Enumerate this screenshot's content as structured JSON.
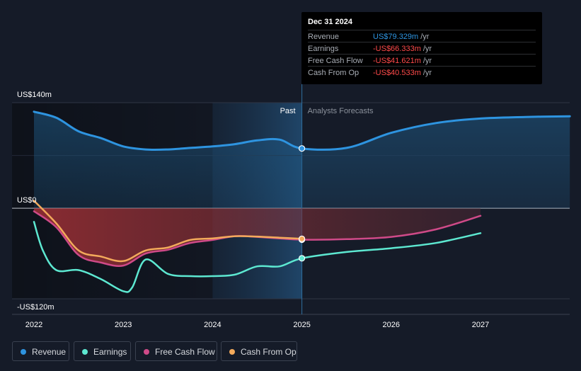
{
  "chart_data": {
    "type": "area",
    "y_axis": {
      "ylim": [
        -120,
        140
      ],
      "tick_labels": [
        {
          "value": 140,
          "label": "US$140m"
        },
        {
          "value": 0,
          "label": "US$0"
        },
        {
          "value": -120,
          "label": "-US$120m"
        }
      ]
    },
    "x_axis": {
      "xlim": [
        2022,
        2028
      ],
      "ticks": [
        2022,
        2023,
        2024,
        2025,
        2026,
        2027
      ],
      "tick_labels": [
        "2022",
        "2023",
        "2024",
        "2025",
        "2026",
        "2027"
      ]
    },
    "past_boundary": 2025,
    "highlight_start": 2024,
    "past_label": "Past",
    "forecast_label": "Analysts Forecasts",
    "series": [
      {
        "name": "Revenue",
        "color": "#2e94e0",
        "values": [
          [
            2022,
            128
          ],
          [
            2022.25,
            120
          ],
          [
            2022.5,
            102
          ],
          [
            2022.75,
            93
          ],
          [
            2023,
            82
          ],
          [
            2023.25,
            78
          ],
          [
            2023.5,
            78
          ],
          [
            2023.75,
            80
          ],
          [
            2024,
            82
          ],
          [
            2024.25,
            85
          ],
          [
            2024.5,
            90
          ],
          [
            2024.75,
            91
          ],
          [
            2025,
            79.3
          ],
          [
            2025.5,
            80
          ],
          [
            2026,
            100
          ],
          [
            2026.5,
            113
          ],
          [
            2027,
            119
          ],
          [
            2027.5,
            121
          ],
          [
            2028,
            122
          ]
        ]
      },
      {
        "name": "Earnings",
        "color": "#5de8d1",
        "values": [
          [
            2022,
            -18
          ],
          [
            2022.1,
            -56
          ],
          [
            2022.25,
            -82
          ],
          [
            2022.5,
            -82
          ],
          [
            2022.75,
            -94
          ],
          [
            2023,
            -110
          ],
          [
            2023.1,
            -105
          ],
          [
            2023.25,
            -68
          ],
          [
            2023.5,
            -87
          ],
          [
            2023.75,
            -90
          ],
          [
            2024,
            -90
          ],
          [
            2024.25,
            -88
          ],
          [
            2024.5,
            -77
          ],
          [
            2024.75,
            -77
          ],
          [
            2025,
            -66.3
          ],
          [
            2025.5,
            -58
          ],
          [
            2026,
            -53
          ],
          [
            2026.5,
            -46
          ],
          [
            2027,
            -33
          ]
        ]
      },
      {
        "name": "Free Cash Flow",
        "color": "#cf4a88",
        "values": [
          [
            2022,
            -4
          ],
          [
            2022.25,
            -25
          ],
          [
            2022.5,
            -62
          ],
          [
            2022.75,
            -72
          ],
          [
            2023,
            -76
          ],
          [
            2023.25,
            -60
          ],
          [
            2023.5,
            -55
          ],
          [
            2023.75,
            -46
          ],
          [
            2024,
            -42
          ],
          [
            2024.25,
            -37
          ],
          [
            2024.5,
            -38
          ],
          [
            2024.75,
            -40
          ],
          [
            2025,
            -41.6
          ],
          [
            2025.5,
            -41
          ],
          [
            2026,
            -38
          ],
          [
            2026.5,
            -28
          ],
          [
            2027,
            -10
          ]
        ]
      },
      {
        "name": "Cash From Op",
        "color": "#f3aa5b",
        "values": [
          [
            2022,
            10
          ],
          [
            2022.25,
            -20
          ],
          [
            2022.5,
            -56
          ],
          [
            2022.75,
            -64
          ],
          [
            2023,
            -70
          ],
          [
            2023.25,
            -56
          ],
          [
            2023.5,
            -52
          ],
          [
            2023.75,
            -42
          ],
          [
            2024,
            -40
          ],
          [
            2024.25,
            -37
          ],
          [
            2024.5,
            -37.5
          ],
          [
            2024.75,
            -39
          ],
          [
            2025,
            -40.5
          ]
        ]
      }
    ]
  },
  "tooltip": {
    "date": "Dec 31 2024",
    "rows": [
      {
        "label": "Revenue",
        "value": "US$79.329m",
        "unit": "/yr",
        "color": "#2e94e0"
      },
      {
        "label": "Earnings",
        "value": "-US$66.333m",
        "unit": "/yr",
        "color": "#ff4a4a"
      },
      {
        "label": "Free Cash Flow",
        "value": "-US$41.621m",
        "unit": "/yr",
        "color": "#ff4a4a"
      },
      {
        "label": "Cash From Op",
        "value": "-US$40.533m",
        "unit": "/yr",
        "color": "#ff4a4a"
      }
    ]
  },
  "legend": [
    {
      "label": "Revenue",
      "color": "#2e94e0"
    },
    {
      "label": "Earnings",
      "color": "#5de8d1"
    },
    {
      "label": "Free Cash Flow",
      "color": "#cf4a88"
    },
    {
      "label": "Cash From Op",
      "color": "#f3aa5b"
    }
  ]
}
